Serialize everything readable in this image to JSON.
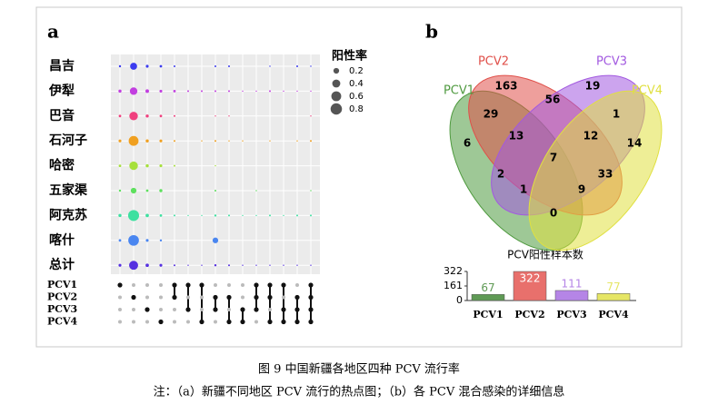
{
  "panel_a": {
    "label": "a",
    "legend_title": "阳性率",
    "legend_sizes": [
      0.2,
      0.4,
      0.6,
      0.8
    ],
    "rows": [
      {
        "name": "昌吉",
        "color": "#3b3bef",
        "values": [
          0.03,
          0.3,
          0.05,
          0.04,
          0.02,
          0,
          0,
          0.02,
          0.02,
          0,
          0,
          0.01,
          0,
          0.02,
          0.01
        ]
      },
      {
        "name": "伊犁",
        "color": "#c23fe0",
        "values": [
          0.06,
          0.35,
          0.08,
          0.05,
          0.04,
          0.02,
          0.02,
          0.02,
          0.02,
          0.01,
          0.01,
          0.02,
          0.01,
          0.01,
          0.01
        ]
      },
      {
        "name": "巴音",
        "color": "#f0407e",
        "values": [
          0.04,
          0.45,
          0.06,
          0.04,
          0.02,
          0,
          0,
          0.01,
          0.01,
          0,
          0,
          0,
          0,
          0,
          0.01
        ]
      },
      {
        "name": "石河子",
        "color": "#f0a020",
        "values": [
          0.05,
          0.6,
          0.06,
          0.05,
          0.02,
          0,
          0.01,
          0.02,
          0.01,
          0.01,
          0,
          0.01,
          0,
          0.01,
          0.02
        ]
      },
      {
        "name": "哈密",
        "color": "#a6e03c",
        "values": [
          0.04,
          0.45,
          0.06,
          0.05,
          0.02,
          0,
          0,
          0.01,
          0,
          0,
          0,
          0,
          0,
          0,
          0
        ]
      },
      {
        "name": "五家渠",
        "color": "#5ee05e",
        "values": [
          0.03,
          0.2,
          0.04,
          0.06,
          0,
          0,
          0,
          0.02,
          0,
          0,
          0.01,
          0,
          0,
          0,
          0.01
        ]
      },
      {
        "name": "阿克苏",
        "color": "#3ee0a0",
        "values": [
          0.06,
          0.75,
          0.07,
          0.04,
          0.02,
          0.01,
          0.01,
          0.03,
          0.02,
          0.01,
          0.01,
          0.02,
          0.01,
          0.02,
          0.02
        ]
      },
      {
        "name": "喀什",
        "color": "#4a86f0",
        "values": [
          0.04,
          0.7,
          0.05,
          0.03,
          0,
          0,
          0,
          0.2,
          0,
          0,
          0,
          0,
          0,
          0,
          0
        ]
      },
      {
        "name": "总计",
        "color": "#5530e0",
        "values": [
          0.05,
          0.5,
          0.07,
          0.05,
          0.02,
          0.01,
          0.01,
          0.03,
          0.02,
          0.01,
          0.01,
          0.01,
          0.01,
          0.01,
          0.01
        ]
      }
    ],
    "viruses": [
      "PCV1",
      "PCV2",
      "PCV3",
      "PCV4"
    ],
    "combos": [
      [
        1,
        0,
        0,
        0
      ],
      [
        0,
        1,
        0,
        0
      ],
      [
        0,
        0,
        1,
        0
      ],
      [
        0,
        0,
        0,
        1
      ],
      [
        1,
        1,
        0,
        0
      ],
      [
        1,
        0,
        1,
        0
      ],
      [
        1,
        0,
        0,
        1
      ],
      [
        0,
        1,
        1,
        0
      ],
      [
        0,
        1,
        0,
        1
      ],
      [
        0,
        0,
        1,
        1
      ],
      [
        1,
        1,
        1,
        0
      ],
      [
        1,
        1,
        0,
        1
      ],
      [
        1,
        0,
        1,
        1
      ],
      [
        0,
        1,
        1,
        1
      ],
      [
        1,
        1,
        1,
        1
      ]
    ]
  },
  "panel_b": {
    "label": "b",
    "sets": [
      {
        "name": "PCV1",
        "color": "#4f9a3f"
      },
      {
        "name": "PCV2",
        "color": "#e0504a"
      },
      {
        "name": "PCV3",
        "color": "#a259e0"
      },
      {
        "name": "PCV4",
        "color": "#e0e040"
      }
    ],
    "venn_counts": [
      163,
      56,
      19,
      29,
      1,
      6,
      13,
      12,
      14,
      7,
      2,
      33,
      1,
      9,
      0
    ],
    "bar_chart": {
      "type": "bar",
      "title": "PCV阳性样本数",
      "categories": [
        "PCV1",
        "PCV2",
        "PCV3",
        "PCV4"
      ],
      "values": [
        67,
        322,
        111,
        77
      ],
      "colors": [
        "#5f9a55",
        "#e8706c",
        "#b585e6",
        "#e6e665"
      ],
      "ylim": [
        0,
        322
      ],
      "yticks": [
        0,
        161,
        322
      ]
    }
  },
  "caption": {
    "title": "图 9 中国新疆各地区四种 PCV 流行率",
    "note": "注：（a）新疆不同地区 PCV 流行的热点图；（b）各 PCV 混合感染的详细信息"
  }
}
